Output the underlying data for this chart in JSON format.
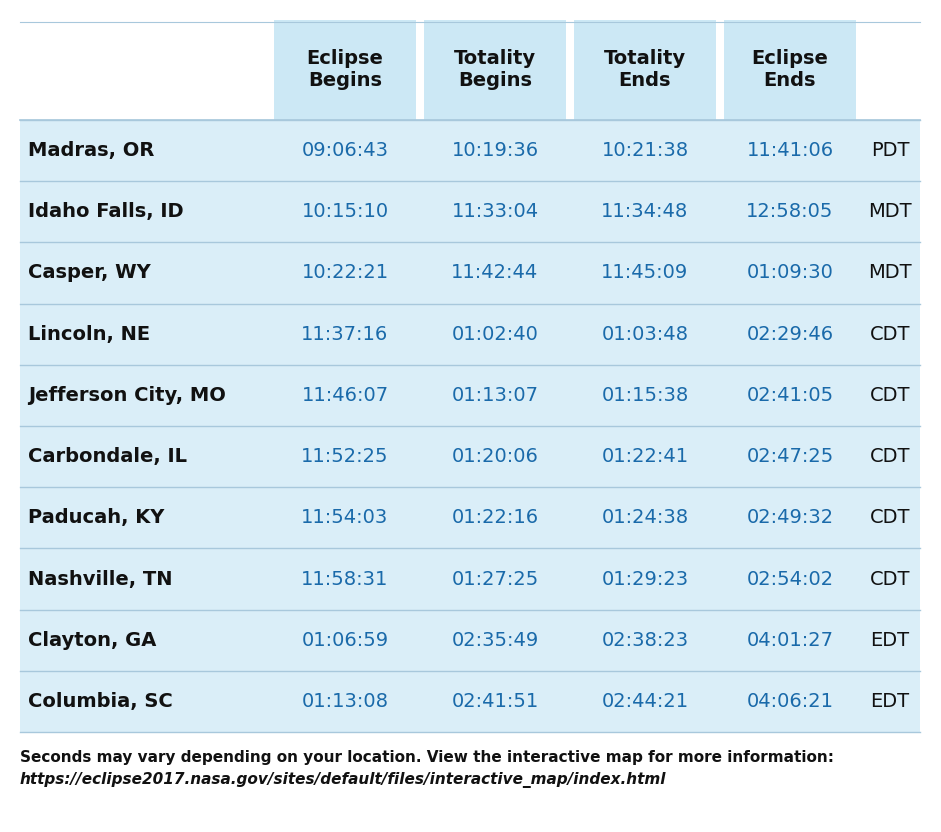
{
  "columns": [
    "Eclipse\nBegins",
    "Totality\nBegins",
    "Totality\nEnds",
    "Eclipse\nEnds"
  ],
  "rows": [
    {
      "city": "Madras, OR",
      "eclipse_begins": "09:06:43",
      "totality_begins": "10:19:36",
      "totality_ends": "10:21:38",
      "eclipse_ends": "11:41:06",
      "tz": "PDT"
    },
    {
      "city": "Idaho Falls, ID",
      "eclipse_begins": "10:15:10",
      "totality_begins": "11:33:04",
      "totality_ends": "11:34:48",
      "eclipse_ends": "12:58:05",
      "tz": "MDT"
    },
    {
      "city": "Casper, WY",
      "eclipse_begins": "10:22:21",
      "totality_begins": "11:42:44",
      "totality_ends": "11:45:09",
      "eclipse_ends": "01:09:30",
      "tz": "MDT"
    },
    {
      "city": "Lincoln, NE",
      "eclipse_begins": "11:37:16",
      "totality_begins": "01:02:40",
      "totality_ends": "01:03:48",
      "eclipse_ends": "02:29:46",
      "tz": "CDT"
    },
    {
      "city": "Jefferson City, MO",
      "eclipse_begins": "11:46:07",
      "totality_begins": "01:13:07",
      "totality_ends": "01:15:38",
      "eclipse_ends": "02:41:05",
      "tz": "CDT"
    },
    {
      "city": "Carbondale, IL",
      "eclipse_begins": "11:52:25",
      "totality_begins": "01:20:06",
      "totality_ends": "01:22:41",
      "eclipse_ends": "02:47:25",
      "tz": "CDT"
    },
    {
      "city": "Paducah, KY",
      "eclipse_begins": "11:54:03",
      "totality_begins": "01:22:16",
      "totality_ends": "01:24:38",
      "eclipse_ends": "02:49:32",
      "tz": "CDT"
    },
    {
      "city": "Nashville, TN",
      "eclipse_begins": "11:58:31",
      "totality_begins": "01:27:25",
      "totality_ends": "01:29:23",
      "eclipse_ends": "02:54:02",
      "tz": "CDT"
    },
    {
      "city": "Clayton, GA",
      "eclipse_begins": "01:06:59",
      "totality_begins": "02:35:49",
      "totality_ends": "02:38:23",
      "eclipse_ends": "04:01:27",
      "tz": "EDT"
    },
    {
      "city": "Columbia, SC",
      "eclipse_begins": "01:13:08",
      "totality_begins": "02:41:51",
      "totality_ends": "02:44:21",
      "eclipse_ends": "04:06:21",
      "tz": "EDT"
    }
  ],
  "header_bg": "#cce8f5",
  "row_bg": "#daeef8",
  "divider_color": "#a8c8dc",
  "footer_line_color": "#888888",
  "text_dark": "#111111",
  "text_blue": "#1a6aaa",
  "bg_color": "#ffffff",
  "header_fontsize": 14,
  "city_fontsize": 14,
  "data_fontsize": 14,
  "tz_fontsize": 14,
  "footer_fontsize": 11
}
